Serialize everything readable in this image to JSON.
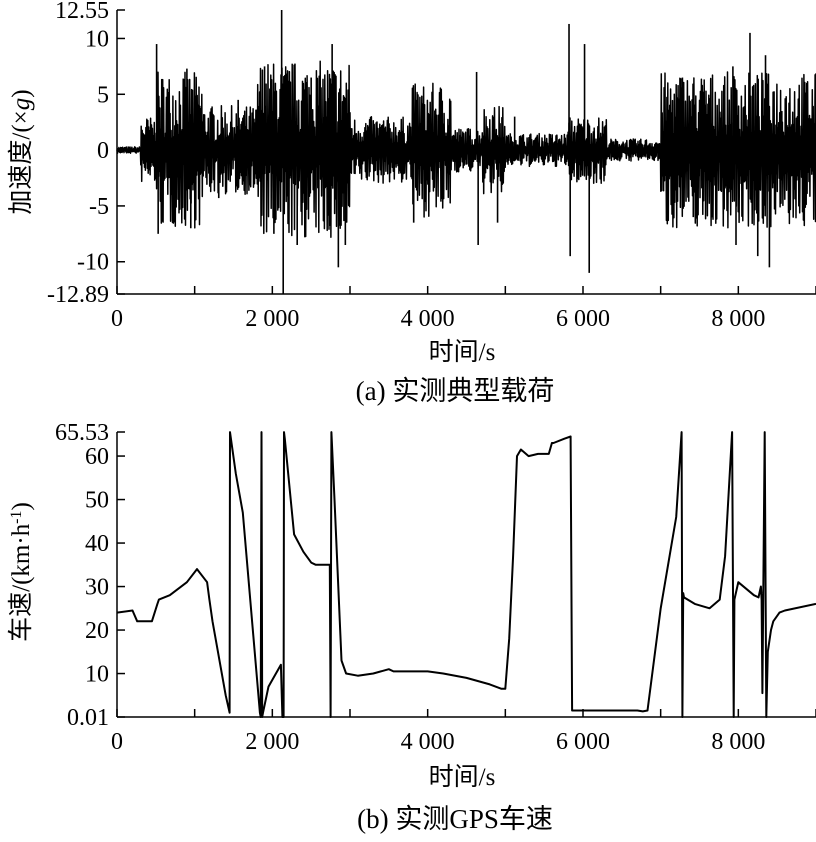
{
  "chart_data": [
    {
      "type": "line",
      "caption": "(a) 实测典型载荷",
      "xlabel": "时间/s",
      "ylabel_prefix": "加速度/(×",
      "ylabel_var": "g",
      "ylabel_suffix": ")",
      "xlim": [
        0,
        9000
      ],
      "ylim": [
        -12.89,
        12.55
      ],
      "x_ticks": [
        0,
        2000,
        4000,
        6000,
        8000
      ],
      "x_tick_labels": [
        "0",
        "2 000",
        "4 000",
        "6 000",
        "8 000"
      ],
      "y_ticks": [
        12.55,
        10,
        5,
        0,
        -5,
        -10,
        -12.89
      ],
      "y_tick_labels": [
        "12.55",
        "10",
        "5",
        "0",
        "-5",
        "-10",
        "-12.89"
      ],
      "envelope_segments": [
        {
          "x": [
            0,
            300
          ],
          "amp": 0.3
        },
        {
          "x": [
            300,
            500
          ],
          "amp": 3
        },
        {
          "x": [
            500,
            1100
          ],
          "amp": 7
        },
        {
          "x": [
            1100,
            1800
          ],
          "amp": 4
        },
        {
          "x": [
            1800,
            3000
          ],
          "amp": 8
        },
        {
          "x": [
            3000,
            3800
          ],
          "amp": 3
        },
        {
          "x": [
            3800,
            4300
          ],
          "amp": 6
        },
        {
          "x": [
            4300,
            4700
          ],
          "amp": 2
        },
        {
          "x": [
            4700,
            5000
          ],
          "amp": 4
        },
        {
          "x": [
            5000,
            5800
          ],
          "amp": 1.5
        },
        {
          "x": [
            5800,
            6300
          ],
          "amp": 3
        },
        {
          "x": [
            6300,
            7000
          ],
          "amp": 1
        },
        {
          "x": [
            7000,
            9000
          ],
          "amp": 7
        }
      ],
      "spikes": [
        {
          "x": 510,
          "y": 9.5
        },
        {
          "x": 530,
          "y": -7.5
        },
        {
          "x": 900,
          "y": 7.3
        },
        {
          "x": 950,
          "y": -7
        },
        {
          "x": 1310,
          "y": -4.3
        },
        {
          "x": 1560,
          "y": 4.5
        },
        {
          "x": 1900,
          "y": 7.5
        },
        {
          "x": 2020,
          "y": -7.5
        },
        {
          "x": 2120,
          "y": 12.55
        },
        {
          "x": 2140,
          "y": -12.89
        },
        {
          "x": 2320,
          "y": -8.5
        },
        {
          "x": 2500,
          "y": 6.5
        },
        {
          "x": 2770,
          "y": 9.5
        },
        {
          "x": 2850,
          "y": -10.5
        },
        {
          "x": 2940,
          "y": -8.5
        },
        {
          "x": 3820,
          "y": -6.5
        },
        {
          "x": 3860,
          "y": 4.5
        },
        {
          "x": 4630,
          "y": 7
        },
        {
          "x": 4650,
          "y": -8.5
        },
        {
          "x": 4900,
          "y": -6.5
        },
        {
          "x": 5120,
          "y": 3
        },
        {
          "x": 5820,
          "y": 11.3
        },
        {
          "x": 5835,
          "y": -9.5
        },
        {
          "x": 6020,
          "y": 9.5
        },
        {
          "x": 6080,
          "y": -11
        },
        {
          "x": 7280,
          "y": 6.5
        },
        {
          "x": 7420,
          "y": -6
        },
        {
          "x": 7930,
          "y": 7.5
        },
        {
          "x": 7970,
          "y": -8.5
        },
        {
          "x": 8150,
          "y": 10.5
        },
        {
          "x": 8250,
          "y": -9.5
        },
        {
          "x": 8350,
          "y": 8.5
        },
        {
          "x": 8400,
          "y": -10.5
        },
        {
          "x": 8560,
          "y": 3.5
        },
        {
          "x": 8790,
          "y": -5
        },
        {
          "x": 8800,
          "y": 0.5
        }
      ]
    },
    {
      "type": "line",
      "caption": "(b) 实测GPS车速",
      "xlabel": "时间/s",
      "ylabel_prefix": "车速/(km·h",
      "ylabel_sup": "-1",
      "ylabel_suffix": ")",
      "xlim": [
        0,
        9000
      ],
      "ylim": [
        0.01,
        65.53
      ],
      "x_ticks": [
        0,
        2000,
        4000,
        6000,
        8000
      ],
      "x_tick_labels": [
        "0",
        "2 000",
        "4 000",
        "6 000",
        "8 000"
      ],
      "y_ticks": [
        65.53,
        60,
        50,
        40,
        30,
        20,
        10,
        0.01
      ],
      "y_tick_labels": [
        "65.53",
        "60",
        "50",
        "40",
        "30",
        "20",
        "10",
        "0.01"
      ],
      "series": [
        {
          "x": [
            0,
            200,
            260,
            300,
            450,
            520,
            540,
            680,
            900,
            1030,
            1160,
            1190,
            1230,
            1400,
            1450,
            1455,
            1530,
            1620,
            1840,
            1850,
            1860,
            1870,
            1880,
            1950,
            2110,
            2130,
            2145,
            2150,
            2160,
            2280,
            2400,
            2500,
            2560,
            2740,
            2750,
            2760,
            2800,
            2890,
            2950,
            3100,
            3300,
            3500,
            3560,
            3600,
            3800,
            4000,
            4200,
            4500,
            4800,
            4950,
            5000,
            5050,
            5100,
            5150,
            5200,
            5300,
            5420,
            5560,
            5600,
            5620,
            5760,
            5840,
            5860,
            5870,
            6000,
            6500,
            6700,
            6770,
            6830,
            7000,
            7200,
            7270,
            7280,
            7290,
            7300,
            7440,
            7630,
            7760,
            7830,
            7920,
            7940,
            7950,
            8000,
            8200,
            8260,
            8290,
            8300,
            8310,
            8340,
            8360,
            8380,
            8420,
            8450,
            8530,
            8600,
            9000
          ],
          "y": [
            24,
            24.5,
            22,
            22,
            22,
            26,
            27,
            28,
            31,
            34,
            31,
            27,
            22,
            5,
            1,
            65.5,
            56,
            47,
            1,
            0.01,
            65.5,
            0.01,
            1,
            7,
            12,
            0.01,
            0.01,
            65.5,
            64,
            42,
            38,
            35.5,
            35,
            35,
            0.01,
            65.5,
            50,
            13,
            10,
            9.5,
            10,
            11,
            10.5,
            10.5,
            10.5,
            10.5,
            10,
            9,
            7.5,
            6.5,
            6.5,
            18,
            37,
            60,
            61.5,
            60,
            60.5,
            60.5,
            63,
            63,
            64,
            64.5,
            1.5,
            1.5,
            1.5,
            1.5,
            1.5,
            1.3,
            1.5,
            25,
            46,
            65.5,
            0.01,
            28.5,
            27.5,
            26,
            25,
            27,
            37,
            65.5,
            0.01,
            27,
            31,
            28,
            27.5,
            30,
            27,
            5.5,
            65.5,
            0.01,
            15,
            20,
            22,
            24,
            24.5,
            26
          ]
        }
      ]
    }
  ]
}
